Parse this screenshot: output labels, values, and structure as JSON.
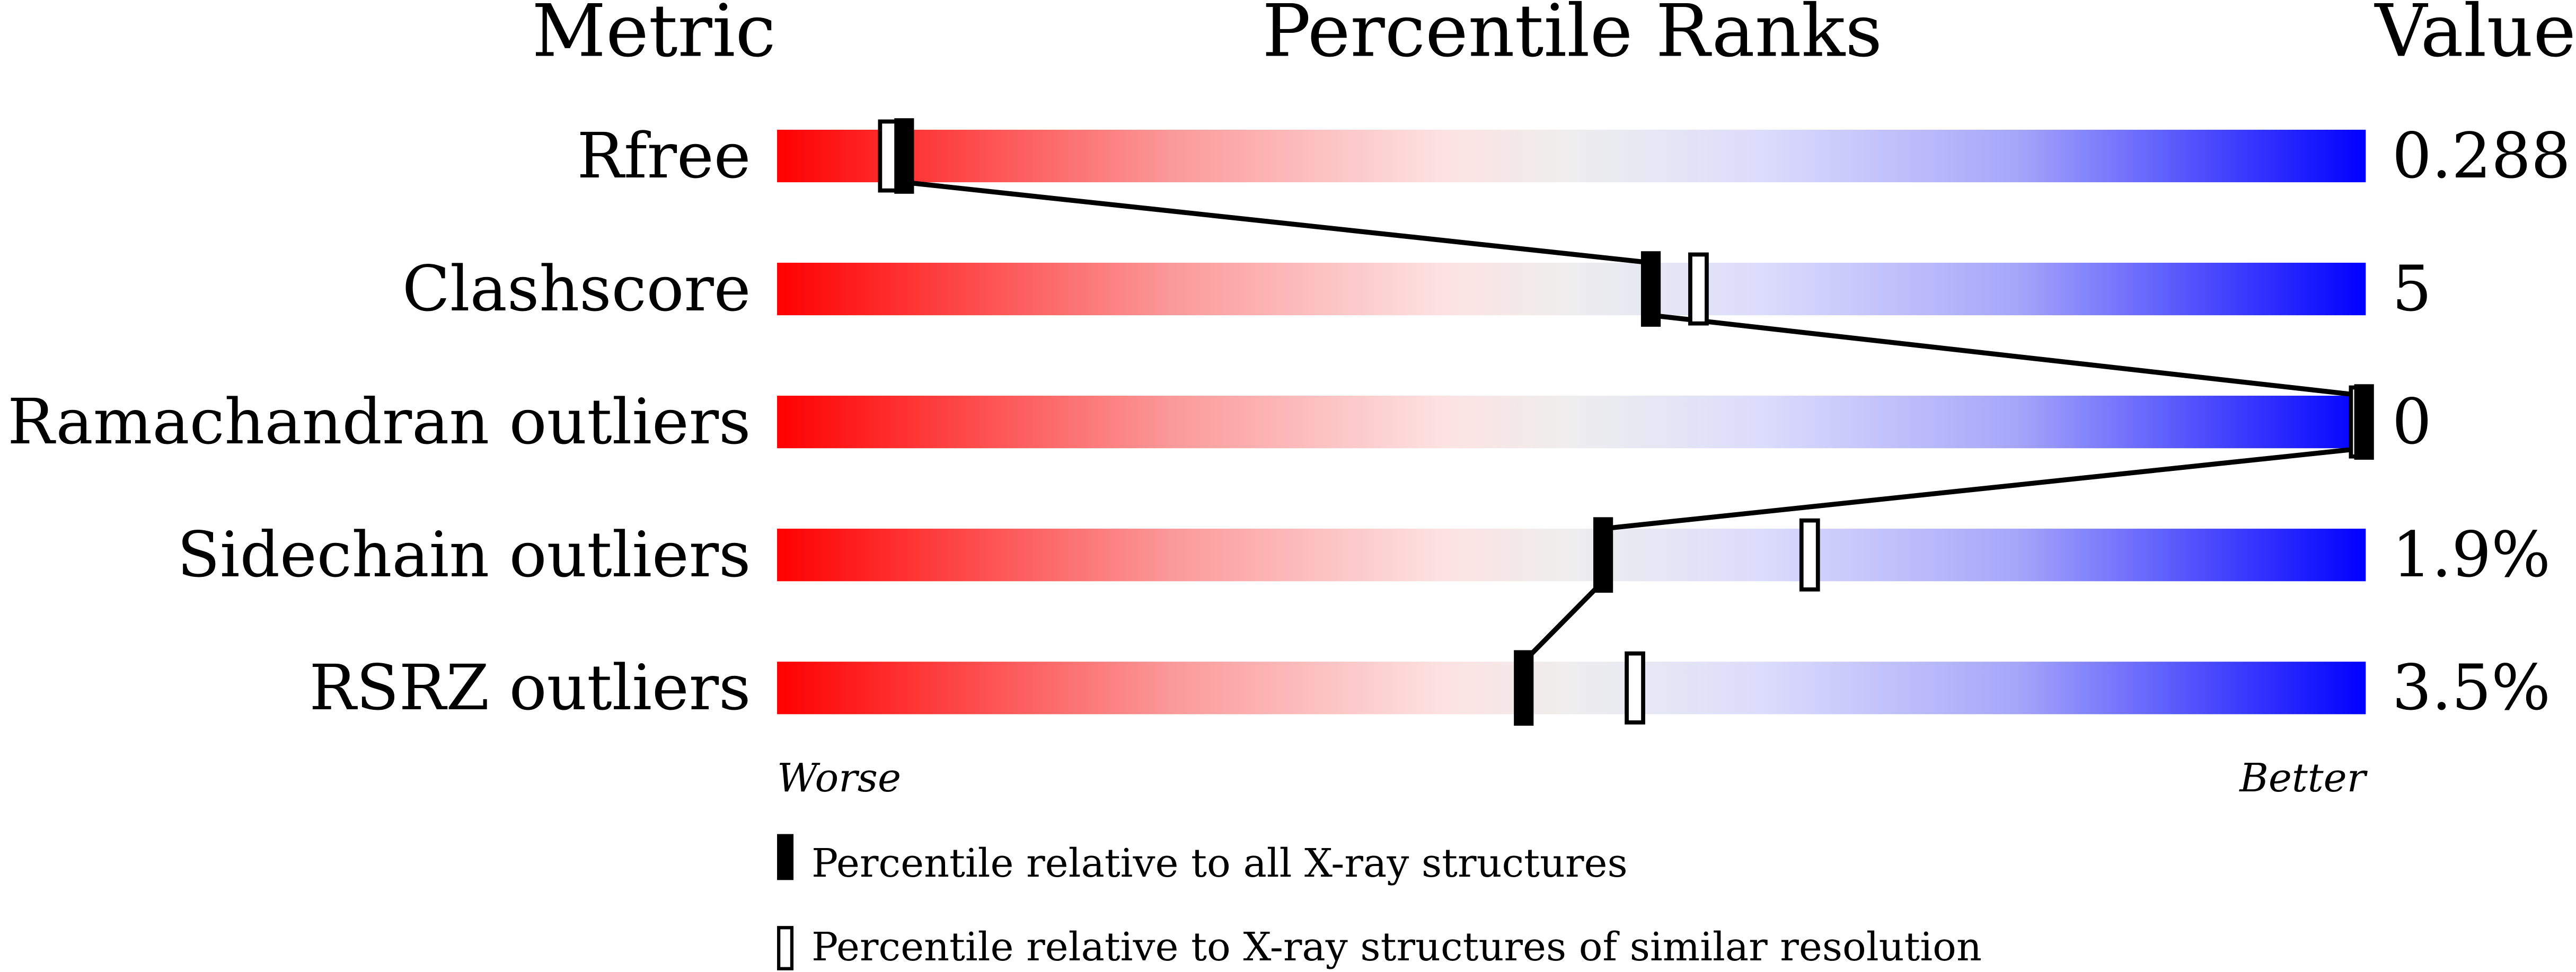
{
  "chart_data": {
    "type": "bar",
    "title": "",
    "headers": {
      "metric": "Metric",
      "ranks": "Percentile Ranks",
      "value": "Value"
    },
    "xlim": [
      0,
      100
    ],
    "scale_labels": {
      "low": "Worse",
      "high": "Better"
    },
    "gradient_colors": {
      "worse": "#ff0000",
      "middle": "#eeeeee",
      "better": "#0000ff"
    },
    "rows": [
      {
        "metric": "Rfree",
        "value": "0.288",
        "percentile_all": 8,
        "percentile_similar": 7
      },
      {
        "metric": "Clashscore",
        "value": "5",
        "percentile_all": 55,
        "percentile_similar": 58
      },
      {
        "metric": "Ramachandran outliers",
        "value": "0",
        "percentile_all": 100,
        "percentile_similar": 100
      },
      {
        "metric": "Sidechain outliers",
        "value": "1.9%",
        "percentile_all": 52,
        "percentile_similar": 65
      },
      {
        "metric": "RSRZ outliers",
        "value": "3.5%",
        "percentile_all": 47,
        "percentile_similar": 54
      }
    ],
    "legend": {
      "all": "Percentile relative to all X-ray structures",
      "similar": "Percentile relative to X-ray structures of similar resolution"
    }
  }
}
